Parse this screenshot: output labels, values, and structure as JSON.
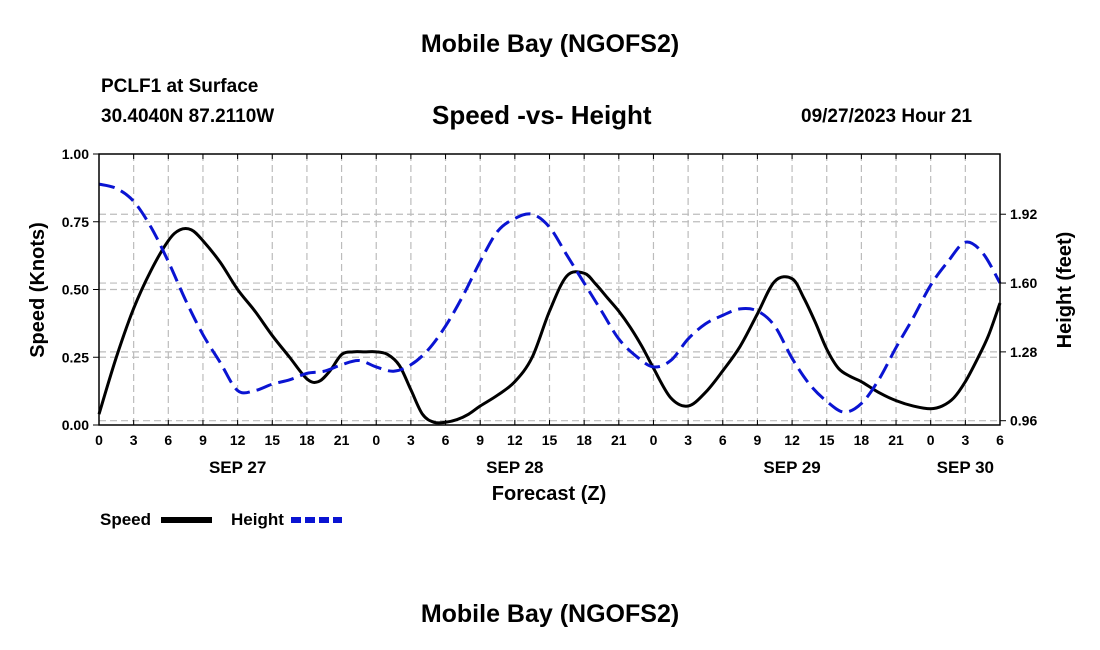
{
  "page": {
    "title_top": "Mobile Bay (NGOFS2)",
    "title_bottom": "Mobile Bay (NGOFS2)",
    "station_line": "PCLF1 at Surface",
    "coords_line": "30.4040N  87.2110W",
    "chart_title": "Speed -vs- Height",
    "timestamp": "09/27/2023 Hour 21"
  },
  "colors": {
    "speed": "#000000",
    "height": "#0a14d2",
    "grid": "#bcbcbc"
  },
  "chart_data": {
    "type": "line",
    "title": "Speed -vs- Height",
    "xlabel": "Forecast (Z)",
    "ylabel_left": "Speed (Knots)",
    "ylabel_right": "Height (feet)",
    "x_unit": "hours since SEP 27 00Z",
    "xlim": [
      0,
      78
    ],
    "ylim_left": [
      0,
      1.0
    ],
    "ylim_right": [
      0.94,
      2.2
    ],
    "x_ticks": [
      0,
      3,
      6,
      9,
      12,
      15,
      18,
      21,
      24,
      27,
      30,
      33,
      36,
      39,
      42,
      45,
      48,
      51,
      54,
      57,
      60,
      63,
      66,
      69,
      72,
      75,
      78
    ],
    "x_tick_labels": [
      "0",
      "3",
      "6",
      "9",
      "12",
      "15",
      "18",
      "21",
      "0",
      "3",
      "6",
      "9",
      "12",
      "15",
      "18",
      "21",
      "0",
      "3",
      "6",
      "9",
      "12",
      "15",
      "18",
      "21",
      "0",
      "3",
      "6"
    ],
    "date_labels": [
      {
        "x": 12,
        "label": "SEP 27"
      },
      {
        "x": 36,
        "label": "SEP 28"
      },
      {
        "x": 60,
        "label": "SEP 29"
      },
      {
        "x": 75,
        "label": "SEP 30"
      }
    ],
    "y_ticks_left": [
      0.0,
      0.25,
      0.5,
      0.75,
      1.0
    ],
    "y_tick_labels_left": [
      "0.00",
      "0.25",
      "0.50",
      "0.75",
      "1.00"
    ],
    "y_ticks_right": [
      0.96,
      1.28,
      1.6,
      1.92
    ],
    "y_tick_labels_right": [
      "0.96",
      "1.28",
      "1.60",
      "1.92"
    ],
    "grid": true,
    "legend": "bottom-left",
    "series": [
      {
        "name": "Speed",
        "axis": "left",
        "style": "solid",
        "x": [
          0,
          1.5,
          3,
          4.5,
          6,
          7,
          8,
          9,
          10.5,
          12,
          13.5,
          15,
          16.5,
          18,
          19,
          20,
          21,
          22,
          23,
          24,
          25,
          26,
          27,
          28,
          29,
          30,
          31,
          32,
          33,
          34.5,
          36,
          37.5,
          39,
          40.5,
          42,
          43,
          44,
          45,
          46,
          47,
          48,
          49.5,
          51,
          52.5,
          54,
          55.5,
          57,
          58.5,
          60,
          61,
          62,
          63,
          64,
          65,
          66,
          67.5,
          69,
          70.5,
          72,
          73,
          74,
          75,
          76,
          77,
          78
        ],
        "values": [
          0.04,
          0.25,
          0.43,
          0.57,
          0.68,
          0.72,
          0.72,
          0.68,
          0.6,
          0.5,
          0.42,
          0.33,
          0.25,
          0.17,
          0.16,
          0.2,
          0.26,
          0.27,
          0.27,
          0.27,
          0.26,
          0.22,
          0.13,
          0.04,
          0.01,
          0.01,
          0.02,
          0.04,
          0.07,
          0.11,
          0.16,
          0.25,
          0.42,
          0.55,
          0.56,
          0.52,
          0.47,
          0.42,
          0.36,
          0.29,
          0.21,
          0.1,
          0.07,
          0.12,
          0.2,
          0.29,
          0.41,
          0.53,
          0.54,
          0.47,
          0.38,
          0.28,
          0.21,
          0.18,
          0.16,
          0.12,
          0.09,
          0.07,
          0.06,
          0.07,
          0.1,
          0.16,
          0.24,
          0.33,
          0.45
        ]
      },
      {
        "name": "Height",
        "axis": "right",
        "style": "dashed",
        "x": [
          0,
          1.5,
          3,
          4.5,
          6,
          7.5,
          9,
          10.5,
          12,
          13.5,
          15,
          16.5,
          18,
          19.5,
          21,
          22.5,
          24,
          25.5,
          27,
          28.5,
          30,
          31.5,
          33,
          34.5,
          36,
          37.5,
          39,
          40.5,
          42,
          43.5,
          45,
          46.5,
          48,
          49.5,
          51,
          52.5,
          54,
          55.5,
          57,
          58.5,
          60,
          61.5,
          63,
          64.5,
          66,
          67.5,
          69,
          70.5,
          72,
          73.5,
          75,
          76.5,
          78
        ],
        "values": [
          2.06,
          2.04,
          1.98,
          1.86,
          1.7,
          1.52,
          1.36,
          1.23,
          1.1,
          1.1,
          1.13,
          1.15,
          1.18,
          1.19,
          1.22,
          1.24,
          1.21,
          1.19,
          1.22,
          1.29,
          1.4,
          1.54,
          1.7,
          1.84,
          1.9,
          1.92,
          1.86,
          1.73,
          1.6,
          1.47,
          1.34,
          1.26,
          1.21,
          1.24,
          1.34,
          1.41,
          1.45,
          1.48,
          1.47,
          1.4,
          1.25,
          1.13,
          1.05,
          1.0,
          1.04,
          1.15,
          1.3,
          1.44,
          1.59,
          1.7,
          1.79,
          1.74,
          1.6
        ]
      }
    ]
  }
}
